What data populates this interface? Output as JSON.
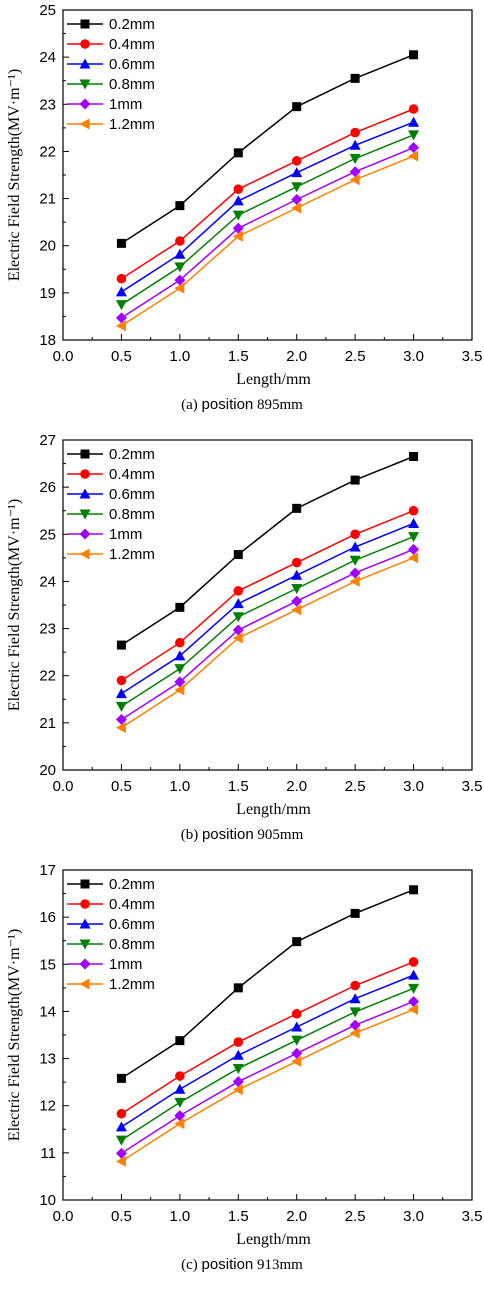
{
  "series_colors": [
    "#000000",
    "#ff0000",
    "#0000ff",
    "#008000",
    "#a000ff",
    "#ff8000"
  ],
  "series_markers": [
    "square",
    "circle",
    "triangle-up",
    "triangle-down",
    "diamond",
    "triangle-left"
  ],
  "chart_data": [
    {
      "type": "line",
      "caption": {
        "prefix": "(a)",
        "word": "position",
        "value": "895mm"
      },
      "xlabel": "Length/mm",
      "ylabel": "Electric Field Strength(MV·m⁻¹)",
      "xlim": [
        0.0,
        3.5
      ],
      "ylim": [
        18,
        25
      ],
      "xticks": [
        "0.0",
        "0.5",
        "1.0",
        "1.5",
        "2.0",
        "2.5",
        "3.0",
        "3.5"
      ],
      "yticks": [
        "18",
        "19",
        "20",
        "21",
        "22",
        "23",
        "24",
        "25"
      ],
      "legend_position": "top-left",
      "grid": false,
      "x": [
        0.5,
        1.0,
        1.5,
        2.0,
        2.5,
        3.0
      ],
      "series": [
        {
          "name": "0.2mm",
          "values": [
            20.05,
            20.85,
            21.97,
            22.95,
            23.55,
            24.05
          ]
        },
        {
          "name": "0.4mm",
          "values": [
            19.3,
            20.1,
            21.2,
            21.8,
            22.4,
            22.9
          ]
        },
        {
          "name": "0.6mm",
          "values": [
            19.02,
            19.82,
            20.95,
            21.55,
            22.13,
            22.62
          ]
        },
        {
          "name": "0.8mm",
          "values": [
            18.75,
            19.55,
            20.65,
            21.25,
            21.85,
            22.35
          ]
        },
        {
          "name": "1mm",
          "values": [
            18.47,
            19.27,
            20.37,
            20.98,
            21.57,
            22.08
          ]
        },
        {
          "name": "1.2mm",
          "values": [
            18.3,
            19.1,
            20.2,
            20.8,
            21.4,
            21.9
          ]
        }
      ]
    },
    {
      "type": "line",
      "caption": {
        "prefix": "(b)",
        "word": "position",
        "value": "905mm"
      },
      "xlabel": "Length/mm",
      "ylabel": "Electric Field Strength(MV·m⁻¹)",
      "xlim": [
        0.0,
        3.5
      ],
      "ylim": [
        20,
        27
      ],
      "xticks": [
        "0.0",
        "0.5",
        "1.0",
        "1.5",
        "2.0",
        "2.5",
        "3.0",
        "3.5"
      ],
      "yticks": [
        "20",
        "21",
        "22",
        "23",
        "24",
        "25",
        "26",
        "27"
      ],
      "legend_position": "top-left",
      "grid": false,
      "x": [
        0.5,
        1.0,
        1.5,
        2.0,
        2.5,
        3.0
      ],
      "series": [
        {
          "name": "0.2mm",
          "values": [
            22.65,
            23.45,
            24.57,
            25.55,
            26.15,
            26.65
          ]
        },
        {
          "name": "0.4mm",
          "values": [
            21.9,
            22.7,
            23.8,
            24.4,
            25.0,
            25.5
          ]
        },
        {
          "name": "0.6mm",
          "values": [
            21.62,
            22.42,
            23.53,
            24.13,
            24.73,
            25.23
          ]
        },
        {
          "name": "0.8mm",
          "values": [
            21.35,
            22.15,
            23.25,
            23.85,
            24.45,
            24.95
          ]
        },
        {
          "name": "1mm",
          "values": [
            21.07,
            21.87,
            22.97,
            23.58,
            24.18,
            24.68
          ]
        },
        {
          "name": "1.2mm",
          "values": [
            20.9,
            21.7,
            22.8,
            23.4,
            24.0,
            24.5
          ]
        }
      ]
    },
    {
      "type": "line",
      "caption": {
        "prefix": "(c)",
        "word": "position",
        "value": "913mm"
      },
      "xlabel": "Length/mm",
      "ylabel": "Electric Field Strength(MV·m⁻¹)",
      "xlim": [
        0.0,
        3.5
      ],
      "ylim": [
        10,
        17
      ],
      "xticks": [
        "0.0",
        "0.5",
        "1.0",
        "1.5",
        "2.0",
        "2.5",
        "3.0",
        "3.5"
      ],
      "yticks": [
        "10",
        "11",
        "12",
        "13",
        "14",
        "15",
        "16",
        "17"
      ],
      "legend_position": "top-left",
      "grid": false,
      "x": [
        0.5,
        1.0,
        1.5,
        2.0,
        2.5,
        3.0
      ],
      "series": [
        {
          "name": "0.2mm",
          "values": [
            12.58,
            13.38,
            14.5,
            15.48,
            16.08,
            16.58
          ]
        },
        {
          "name": "0.4mm",
          "values": [
            11.83,
            12.63,
            13.35,
            13.95,
            14.55,
            15.05
          ]
        },
        {
          "name": "0.6mm",
          "values": [
            11.55,
            12.35,
            13.07,
            13.67,
            14.27,
            14.77
          ]
        },
        {
          "name": "0.8mm",
          "values": [
            11.27,
            12.07,
            12.79,
            13.39,
            13.99,
            14.49
          ]
        },
        {
          "name": "1mm",
          "values": [
            10.99,
            11.79,
            12.51,
            13.11,
            13.71,
            14.21
          ]
        },
        {
          "name": "1.2mm",
          "values": [
            10.82,
            11.62,
            12.34,
            12.94,
            13.54,
            14.04
          ]
        }
      ]
    }
  ]
}
